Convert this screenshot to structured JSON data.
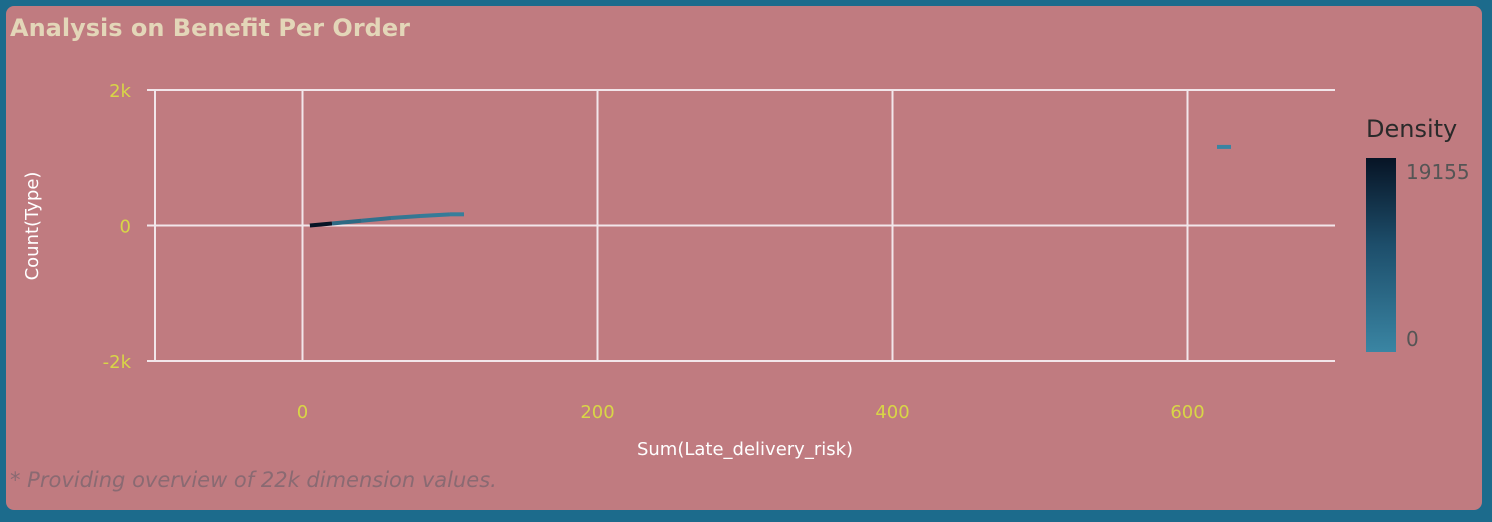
{
  "title": "Analysis on Benefit Per Order",
  "footnote": "* Providing overview of 22k dimension values.",
  "colors": {
    "frame_border": "#1c6b8c",
    "background": "#c07b80",
    "grid": "#f2e6ea",
    "tick_text": "#d8d646",
    "density_low": "#3a85a3",
    "density_high": "#071425"
  },
  "chart_data": {
    "type": "heatmap",
    "xlabel": "Sum(Late_delivery_risk)",
    "ylabel": "Count(Type)",
    "xlim": [
      -100,
      700
    ],
    "ylim": [
      -2000,
      2000
    ],
    "x_ticks": [
      0,
      200,
      400,
      600
    ],
    "x_tick_labels": [
      "0",
      "200",
      "400",
      "600"
    ],
    "y_ticks": [
      2000,
      0,
      -2000
    ],
    "y_tick_labels": [
      "2k",
      "0",
      "-2k"
    ],
    "grid": true,
    "legend": {
      "title": "Density",
      "max_label": "19155",
      "min_label": "0",
      "max": 19155,
      "min": 0,
      "placement": "right"
    },
    "series": [
      {
        "points": [
          {
            "x": 5,
            "y": 0,
            "density": 19155
          },
          {
            "x": 20,
            "y": 30,
            "density": 1200
          },
          {
            "x": 40,
            "y": 70,
            "density": 600
          },
          {
            "x": 60,
            "y": 110,
            "density": 300
          },
          {
            "x": 80,
            "y": 140,
            "density": 150
          },
          {
            "x": 100,
            "y": 165,
            "density": 80
          },
          {
            "x": 620,
            "y": 1160,
            "density": 1
          }
        ]
      }
    ]
  }
}
